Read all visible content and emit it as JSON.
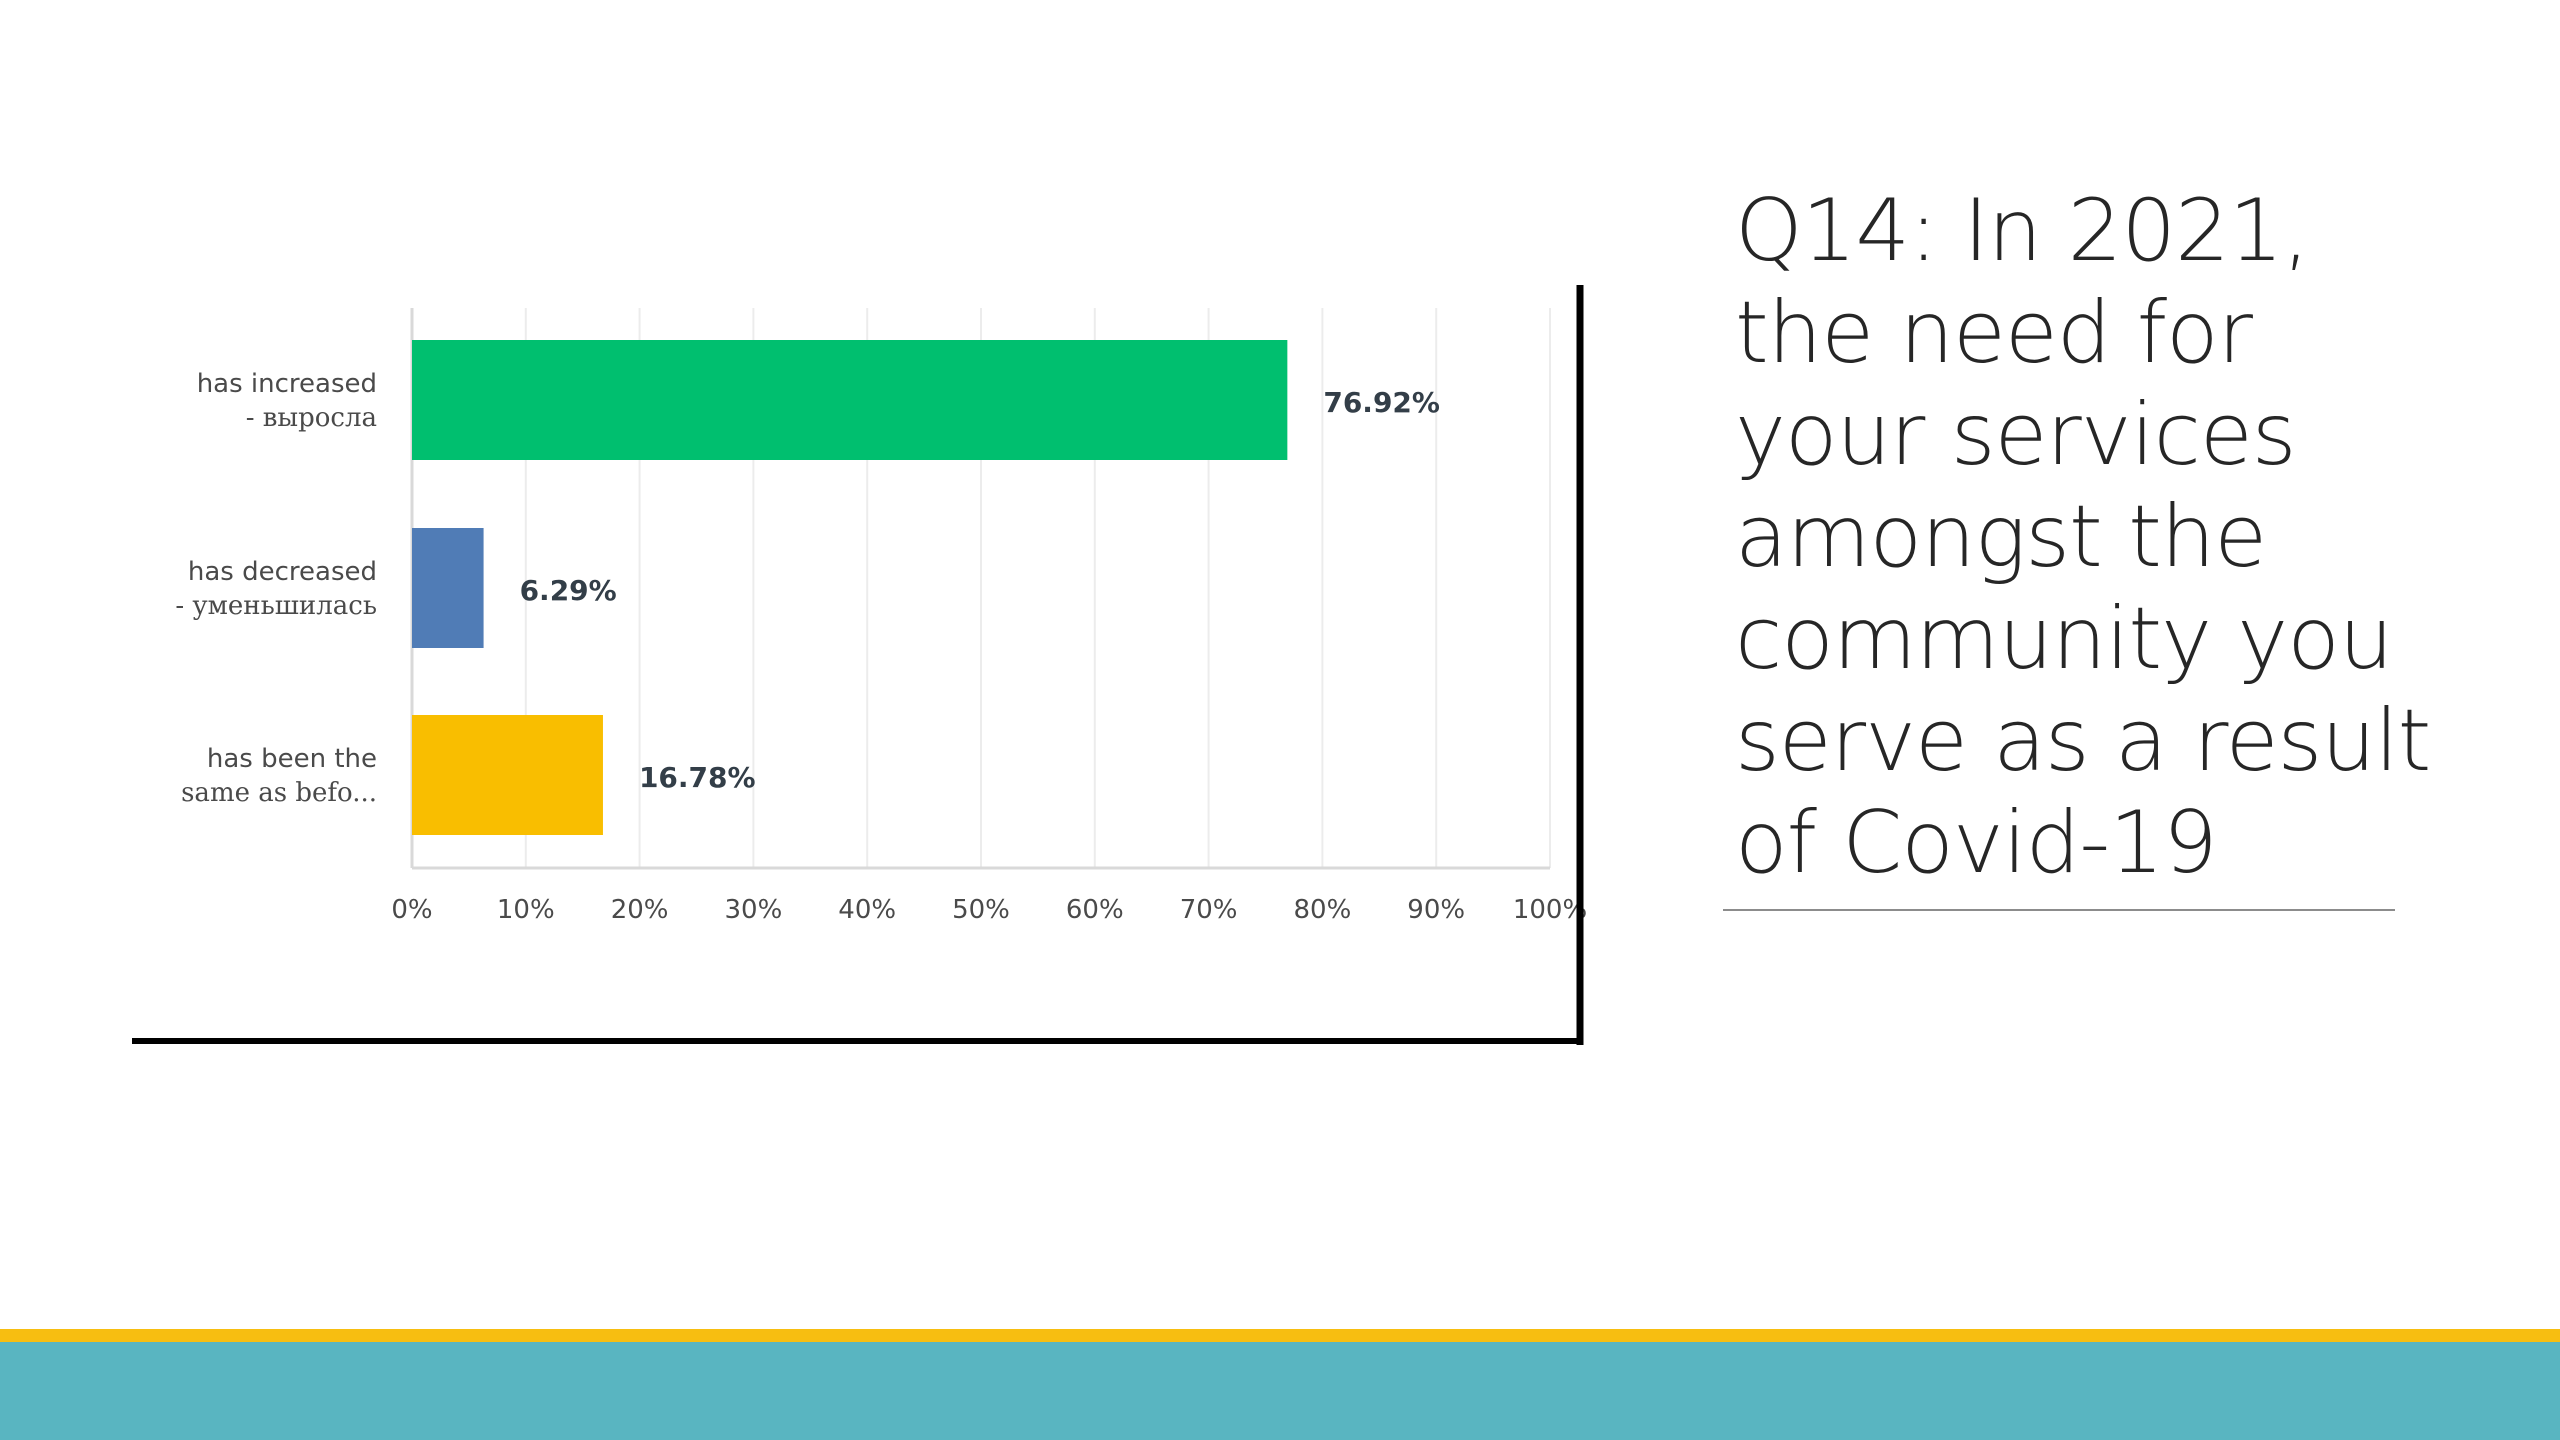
{
  "slide": {
    "title_lines": [
      "Q14: In 2021,",
      "the need for",
      "your services",
      "amongst the",
      "community you",
      "serve as a result",
      "of Covid-19"
    ]
  },
  "chart_data": {
    "type": "bar",
    "orientation": "horizontal",
    "categories": [
      [
        "has increased",
        "- выросла"
      ],
      [
        "has decreased",
        "- уменьшилась"
      ],
      [
        "has been the",
        "same as befo..."
      ]
    ],
    "values": [
      76.92,
      6.29,
      16.78
    ],
    "value_labels": [
      "76.92%",
      "6.29%",
      "16.78%"
    ],
    "bar_colors": [
      "#00bf6f",
      "#507cb6",
      "#f9be00"
    ],
    "xlim": [
      0,
      100
    ],
    "x_ticks": [
      0,
      10,
      20,
      30,
      40,
      50,
      60,
      70,
      80,
      90,
      100
    ],
    "x_tick_labels": [
      "0%",
      "10%",
      "20%",
      "30%",
      "40%",
      "50%",
      "60%",
      "70%",
      "80%",
      "90%",
      "100%"
    ],
    "grid": true,
    "legend": "none"
  },
  "colors": {
    "gridline": "#ececec",
    "axis": "#d9d9d9",
    "frame": "#000000",
    "label_text": "#4a4a4a",
    "value_text": "#333e48",
    "footer_gold": "#f7be11",
    "footer_teal": "#59b5c1"
  }
}
